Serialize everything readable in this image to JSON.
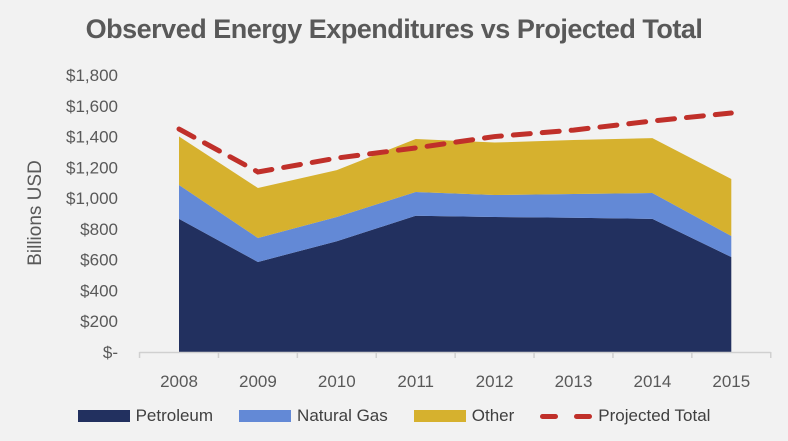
{
  "chart_data": {
    "type": "area",
    "title": "Observed Energy Expenditures vs Projected Total",
    "xlabel": "",
    "ylabel": "Billions USD",
    "categories": [
      "2008",
      "2009",
      "2010",
      "2011",
      "2012",
      "2013",
      "2014",
      "2015"
    ],
    "ylim": [
      0,
      1800
    ],
    "yticks": [
      0,
      200,
      400,
      600,
      800,
      1000,
      1200,
      1400,
      1600,
      1800
    ],
    "ytick_labels": [
      "$-",
      "$200",
      "$400",
      "$600",
      "$800",
      "$1,000",
      "$1,200",
      "$1,400",
      "$1,600",
      "$1,800"
    ],
    "stacked": true,
    "series": [
      {
        "name": "Petroleum",
        "type": "area",
        "color": "#22305f",
        "values": [
          865,
          585,
          720,
          885,
          877,
          872,
          865,
          617
        ]
      },
      {
        "name": "Natural Gas",
        "type": "area",
        "color": "#6389d6",
        "values": [
          220,
          156,
          157,
          155,
          143,
          155,
          168,
          137
        ]
      },
      {
        "name": "Other",
        "type": "area",
        "color": "#d6b12e",
        "values": [
          315,
          325,
          305,
          344,
          341,
          351,
          357,
          370
        ]
      },
      {
        "name": "Projected Total",
        "type": "line",
        "style": "dashed",
        "color": "#c0302a",
        "values": [
          1449,
          1170,
          1260,
          1326,
          1400,
          1442,
          1501,
          1553
        ]
      }
    ],
    "grid": false,
    "legend_position": "bottom"
  }
}
